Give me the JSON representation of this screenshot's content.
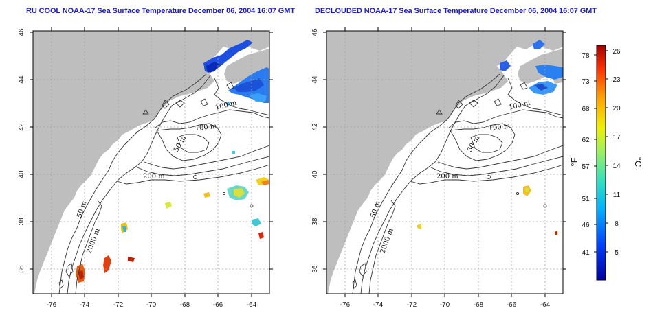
{
  "titles": {
    "left": "RU COOL NOAA-17 Sea Surface Temperature December 06, 2004 16:07 GMT",
    "right": "DECLOUDED NOAA-17 Sea Surface Temperature December 06, 2004 16:07 GMT"
  },
  "axes": {
    "x_ticks": [
      "-76",
      "-74",
      "-72",
      "-70",
      "-68",
      "-66",
      "-64"
    ],
    "y_ticks": [
      "36",
      "38",
      "40",
      "42",
      "44",
      "46"
    ]
  },
  "contour_labels": {
    "left": [
      "100 m",
      "100 m",
      "50 m",
      "200 m",
      "50 m",
      "2000 m"
    ],
    "right": [
      "100 m",
      "100 m",
      "50 m",
      "200 m",
      "50 m",
      "2000 m"
    ]
  },
  "colorbar": {
    "fahrenheit_ticks": [
      "78",
      "73",
      "68",
      "62",
      "57",
      "51",
      "46",
      "41"
    ],
    "celsius_ticks": [
      "26",
      "23",
      "20",
      "17",
      "14",
      "11",
      "8",
      "5"
    ],
    "fahrenheit_unit": "°F",
    "celsius_unit": "°C"
  },
  "colors": {
    "land": "#bebebe",
    "ocean": "#ffffff",
    "title": "#1e1eb4",
    "gradient": [
      "#0000a0",
      "#0040ff",
      "#00b0ff",
      "#30e0c0",
      "#a0f060",
      "#f0f000",
      "#ffa000",
      "#ff3000",
      "#a00000"
    ]
  }
}
